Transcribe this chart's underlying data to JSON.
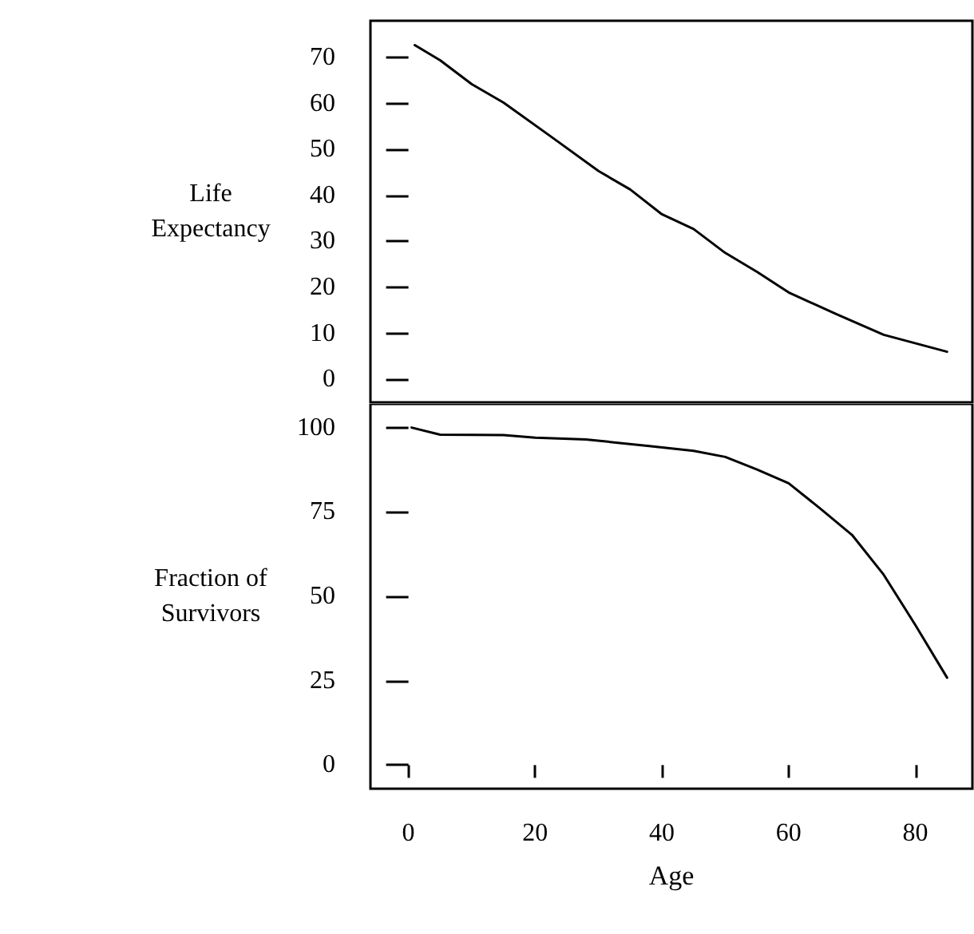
{
  "chart_data": [
    {
      "type": "line",
      "ylabel": "Life\nExpectancy",
      "xlim": [
        -6,
        89
      ],
      "ylim": [
        -5,
        78
      ],
      "yticks": [
        0,
        10,
        20,
        30,
        40,
        50,
        60,
        70
      ],
      "tick_labels": "y",
      "marker": "none",
      "grid": false,
      "series": [
        {
          "color": "#000000",
          "x": [
            1,
            5,
            10,
            15,
            22.5,
            30,
            35,
            40,
            45,
            50,
            55,
            60,
            67.5,
            75,
            85
          ],
          "values": [
            72.7,
            69.4,
            64.2,
            60.2,
            52.8,
            45.3,
            41.3,
            35.9,
            32.7,
            27.5,
            23.4,
            18.9,
            14.2,
            9.7,
            6
          ]
        }
      ]
    },
    {
      "type": "line",
      "xlabel": "Age",
      "ylabel": "Fraction of\nSurvivors",
      "xlim": [
        -6,
        89
      ],
      "ylim": [
        -7,
        107
      ],
      "xticks": [
        0,
        20,
        40,
        60,
        80
      ],
      "yticks": [
        0,
        25,
        50,
        75,
        100
      ],
      "marker": "none",
      "grid": false,
      "series": [
        {
          "color": "#000000",
          "x": [
            0.5,
            5,
            15,
            20,
            28,
            38,
            45,
            50,
            55,
            60,
            65,
            70,
            75,
            80,
            85
          ],
          "values": [
            100,
            97.9,
            97.8,
            97,
            96.5,
            94.5,
            93.1,
            91.3,
            87.6,
            83.5,
            76,
            68.2,
            56.4,
            41.5,
            25.9
          ]
        }
      ]
    }
  ]
}
